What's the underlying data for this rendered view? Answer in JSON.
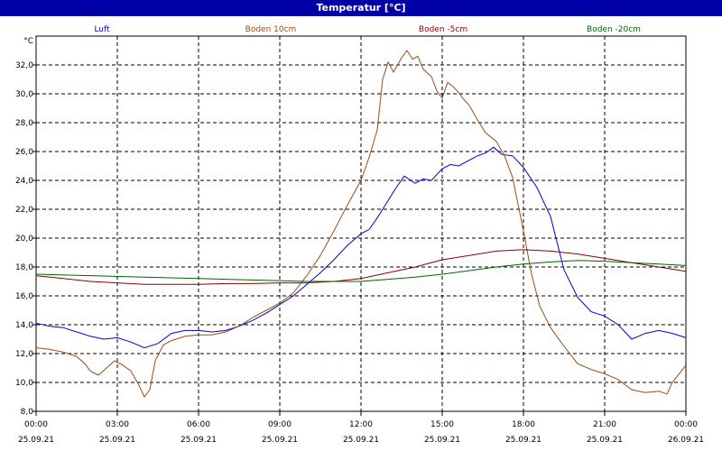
{
  "window": {
    "title": "Temperatur [°C]"
  },
  "colors": {
    "titlebar_bg": "#0000a8",
    "Luft": "#0000cc",
    "Boden 10cm": "#994c1a",
    "Boden -5cm": "#8b0000",
    "Boden -20cm": "#006400",
    "grid": "#000000"
  },
  "chart_data": {
    "type": "line",
    "title": "Temperatur [°C]",
    "ylabel": "°C",
    "ylim": [
      8,
      34
    ],
    "yticks": [
      "8,0",
      "10,0",
      "12,0",
      "14,0",
      "16,0",
      "18,0",
      "20,0",
      "22,0",
      "24,0",
      "26,0",
      "28,0",
      "30,0",
      "32,0"
    ],
    "xlim": [
      0,
      24
    ],
    "xticks": [
      {
        "time": "00:00",
        "date": "25.09.21"
      },
      {
        "time": "03:00",
        "date": "25.09.21"
      },
      {
        "time": "06:00",
        "date": "25.09.21"
      },
      {
        "time": "09:00",
        "date": "25.09.21"
      },
      {
        "time": "12:00",
        "date": "25.09.21"
      },
      {
        "time": "15:00",
        "date": "25.09.21"
      },
      {
        "time": "18:00",
        "date": "25.09.21"
      },
      {
        "time": "21:00",
        "date": "25.09.21"
      },
      {
        "time": "00:00",
        "date": "26.09.21"
      }
    ],
    "grid": true,
    "legend_position": "top",
    "series": [
      {
        "name": "Luft",
        "points": [
          [
            0,
            14.1
          ],
          [
            0.5,
            13.9
          ],
          [
            1,
            13.8
          ],
          [
            1.5,
            13.5
          ],
          [
            2,
            13.2
          ],
          [
            2.5,
            13.0
          ],
          [
            3,
            13.1
          ],
          [
            3.5,
            12.8
          ],
          [
            4,
            12.4
          ],
          [
            4.5,
            12.7
          ],
          [
            5,
            13.4
          ],
          [
            5.5,
            13.6
          ],
          [
            6,
            13.6
          ],
          [
            6.5,
            13.5
          ],
          [
            7,
            13.6
          ],
          [
            7.5,
            13.9
          ],
          [
            8,
            14.3
          ],
          [
            8.5,
            14.8
          ],
          [
            9,
            15.4
          ],
          [
            9.5,
            16.0
          ],
          [
            10,
            16.8
          ],
          [
            10.5,
            17.6
          ],
          [
            11,
            18.5
          ],
          [
            11.5,
            19.5
          ],
          [
            12,
            20.3
          ],
          [
            12.3,
            20.6
          ],
          [
            12.6,
            21.4
          ],
          [
            13,
            22.6
          ],
          [
            13.3,
            23.5
          ],
          [
            13.6,
            24.3
          ],
          [
            14,
            23.8
          ],
          [
            14.3,
            24.1
          ],
          [
            14.6,
            24.0
          ],
          [
            15,
            24.8
          ],
          [
            15.3,
            25.1
          ],
          [
            15.6,
            25.0
          ],
          [
            16,
            25.4
          ],
          [
            16.3,
            25.7
          ],
          [
            16.6,
            25.9
          ],
          [
            16.9,
            26.3
          ],
          [
            17.2,
            25.8
          ],
          [
            17.6,
            25.7
          ],
          [
            18,
            24.9
          ],
          [
            18.5,
            23.5
          ],
          [
            19,
            21.5
          ],
          [
            19.5,
            17.8
          ],
          [
            20,
            15.9
          ],
          [
            20.5,
            14.9
          ],
          [
            21,
            14.6
          ],
          [
            21.5,
            14.0
          ],
          [
            22,
            13.0
          ],
          [
            22.5,
            13.4
          ],
          [
            23,
            13.6
          ],
          [
            23.5,
            13.4
          ],
          [
            24,
            13.1
          ]
        ]
      },
      {
        "name": "Boden 10cm",
        "points": [
          [
            0,
            12.4
          ],
          [
            0.5,
            12.3
          ],
          [
            1,
            12.1
          ],
          [
            1.5,
            11.8
          ],
          [
            1.8,
            11.3
          ],
          [
            2,
            10.8
          ],
          [
            2.3,
            10.5
          ],
          [
            2.6,
            11.0
          ],
          [
            2.9,
            11.5
          ],
          [
            3.2,
            11.2
          ],
          [
            3.5,
            10.8
          ],
          [
            3.8,
            9.8
          ],
          [
            4.0,
            9.0
          ],
          [
            4.2,
            9.5
          ],
          [
            4.4,
            11.5
          ],
          [
            4.7,
            12.6
          ],
          [
            5,
            12.9
          ],
          [
            5.5,
            13.2
          ],
          [
            6,
            13.3
          ],
          [
            6.5,
            13.3
          ],
          [
            7,
            13.5
          ],
          [
            7.5,
            13.9
          ],
          [
            8,
            14.5
          ],
          [
            8.5,
            15.0
          ],
          [
            9,
            15.5
          ],
          [
            9.5,
            16.2
          ],
          [
            10,
            17.4
          ],
          [
            10.5,
            18.8
          ],
          [
            11,
            20.5
          ],
          [
            11.5,
            22.3
          ],
          [
            12,
            24.0
          ],
          [
            12.3,
            25.6
          ],
          [
            12.6,
            27.5
          ],
          [
            12.8,
            31.0
          ],
          [
            13.0,
            32.2
          ],
          [
            13.2,
            31.5
          ],
          [
            13.5,
            32.5
          ],
          [
            13.7,
            33.0
          ],
          [
            13.9,
            32.4
          ],
          [
            14.1,
            32.6
          ],
          [
            14.3,
            31.7
          ],
          [
            14.6,
            31.2
          ],
          [
            14.8,
            30.2
          ],
          [
            15,
            29.7
          ],
          [
            15.2,
            30.8
          ],
          [
            15.4,
            30.5
          ],
          [
            15.6,
            30.1
          ],
          [
            15.8,
            29.6
          ],
          [
            16,
            29.2
          ],
          [
            16.3,
            28.2
          ],
          [
            16.6,
            27.3
          ],
          [
            17,
            26.7
          ],
          [
            17.3,
            25.7
          ],
          [
            17.6,
            24.2
          ],
          [
            18,
            20.5
          ],
          [
            18.3,
            17.5
          ],
          [
            18.6,
            15.3
          ],
          [
            19,
            13.8
          ],
          [
            19.5,
            12.5
          ],
          [
            20,
            11.3
          ],
          [
            20.5,
            10.9
          ],
          [
            21,
            10.6
          ],
          [
            21.5,
            10.2
          ],
          [
            22,
            9.5
          ],
          [
            22.5,
            9.3
          ],
          [
            23,
            9.4
          ],
          [
            23.3,
            9.2
          ],
          [
            23.5,
            10.0
          ],
          [
            24,
            11.2
          ]
        ]
      },
      {
        "name": "Boden -5cm",
        "points": [
          [
            0,
            17.4
          ],
          [
            1,
            17.2
          ],
          [
            2,
            17.0
          ],
          [
            3,
            16.9
          ],
          [
            4,
            16.8
          ],
          [
            5,
            16.8
          ],
          [
            6,
            16.8
          ],
          [
            7,
            16.85
          ],
          [
            8,
            16.85
          ],
          [
            9,
            16.9
          ],
          [
            10,
            16.9
          ],
          [
            11,
            17.0
          ],
          [
            12,
            17.2
          ],
          [
            13,
            17.6
          ],
          [
            14,
            18.0
          ],
          [
            15,
            18.5
          ],
          [
            16,
            18.8
          ],
          [
            17,
            19.1
          ],
          [
            18,
            19.2
          ],
          [
            19,
            19.1
          ],
          [
            20,
            18.9
          ],
          [
            21,
            18.6
          ],
          [
            22,
            18.3
          ],
          [
            23,
            18.0
          ],
          [
            24,
            17.7
          ]
        ]
      },
      {
        "name": "Boden -20cm",
        "points": [
          [
            0,
            17.5
          ],
          [
            2,
            17.4
          ],
          [
            4,
            17.3
          ],
          [
            6,
            17.2
          ],
          [
            8,
            17.1
          ],
          [
            10,
            17.0
          ],
          [
            12,
            17.0
          ],
          [
            13,
            17.15
          ],
          [
            14,
            17.3
          ],
          [
            15,
            17.5
          ],
          [
            16,
            17.75
          ],
          [
            17,
            18.0
          ],
          [
            18,
            18.2
          ],
          [
            19,
            18.35
          ],
          [
            20,
            18.45
          ],
          [
            21,
            18.4
          ],
          [
            22,
            18.3
          ],
          [
            23,
            18.2
          ],
          [
            24,
            18.1
          ]
        ]
      }
    ]
  }
}
